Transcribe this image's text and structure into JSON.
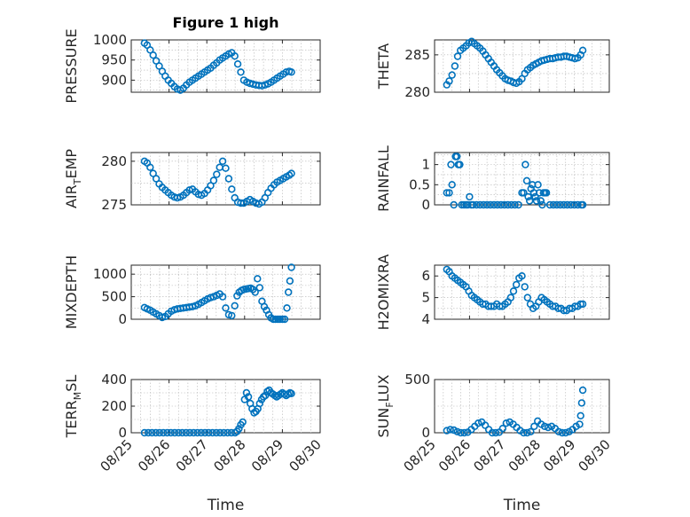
{
  "figure": {
    "title": "Figure 1 high",
    "xlabel": "Time",
    "marker_color": "#0072bd",
    "xticks": [
      "08/25",
      "08/26",
      "08/27",
      "08/28",
      "08/29",
      "08/30"
    ]
  },
  "chart_data": [
    {
      "type": "scatter",
      "title": "Figure 1 high",
      "ylabel": "PRESSURE",
      "xlabel": "",
      "xlim": [
        "08/25",
        "08/30"
      ],
      "ylim": [
        870,
        1000
      ],
      "yticks": [
        "900",
        "950",
        "1000"
      ],
      "grid": true,
      "series": [
        {
          "x": [
            0.35,
            0.42,
            0.5,
            0.58,
            0.66,
            0.74,
            0.82,
            0.9,
            0.98,
            1.06,
            1.14,
            1.22,
            1.3,
            1.38,
            1.46,
            1.54,
            1.62,
            1.7,
            1.78,
            1.86,
            1.94,
            2.02,
            2.1,
            2.18,
            2.26,
            2.34,
            2.42,
            2.5,
            2.58,
            2.66,
            2.74,
            2.82,
            2.9,
            2.98,
            3.06,
            3.14,
            3.22,
            3.3,
            3.38,
            3.46,
            3.54,
            3.62,
            3.7,
            3.78,
            3.86,
            3.94,
            4.02,
            4.1,
            4.18,
            4.24
          ],
          "y": [
            992,
            987,
            975,
            962,
            948,
            935,
            922,
            910,
            900,
            892,
            884,
            878,
            875,
            880,
            888,
            895,
            900,
            905,
            910,
            915,
            920,
            925,
            930,
            937,
            943,
            950,
            955,
            960,
            965,
            968,
            960,
            940,
            920,
            900,
            895,
            892,
            890,
            888,
            887,
            886,
            888,
            891,
            895,
            900,
            905,
            910,
            915,
            920,
            922,
            920
          ]
        }
      ]
    },
    {
      "type": "scatter",
      "title": "",
      "ylabel": "THETA",
      "xlabel": "",
      "xlim": [
        "08/25",
        "08/30"
      ],
      "ylim": [
        280,
        287
      ],
      "yticks": [
        "280",
        "285"
      ],
      "grid": true,
      "series": [
        {
          "x": [
            0.35,
            0.42,
            0.5,
            0.58,
            0.66,
            0.74,
            0.82,
            0.9,
            0.98,
            1.06,
            1.14,
            1.22,
            1.3,
            1.38,
            1.46,
            1.54,
            1.62,
            1.7,
            1.78,
            1.86,
            1.94,
            2.02,
            2.1,
            2.18,
            2.26,
            2.34,
            2.42,
            2.5,
            2.58,
            2.66,
            2.74,
            2.82,
            2.9,
            2.98,
            3.06,
            3.14,
            3.22,
            3.3,
            3.38,
            3.46,
            3.54,
            3.62,
            3.7,
            3.78,
            3.86,
            3.94,
            4.02,
            4.1,
            4.18,
            4.24
          ],
          "y": [
            281,
            281.5,
            282.3,
            283.5,
            284.8,
            285.6,
            285.9,
            286.2,
            286.6,
            286.8,
            286.5,
            286.2,
            285.9,
            285.5,
            285,
            284.5,
            284,
            283.5,
            283,
            282.6,
            282.2,
            281.8,
            281.6,
            281.5,
            281.3,
            281.2,
            281.4,
            281.8,
            282.5,
            283,
            283.3,
            283.6,
            283.8,
            284,
            284.2,
            284.3,
            284.4,
            284.5,
            284.5,
            284.6,
            284.7,
            284.7,
            284.8,
            284.8,
            284.7,
            284.6,
            284.5,
            284.6,
            285,
            285.6
          ]
        }
      ]
    },
    {
      "type": "scatter",
      "title": "",
      "ylabel": "AIR_TEMP",
      "xlabel": "",
      "xlim": [
        "08/25",
        "08/30"
      ],
      "ylim": [
        275,
        281
      ],
      "yticks": [
        "275",
        "280"
      ],
      "grid": true,
      "series": [
        {
          "x": [
            0.35,
            0.42,
            0.5,
            0.58,
            0.66,
            0.74,
            0.82,
            0.9,
            0.98,
            1.06,
            1.14,
            1.22,
            1.3,
            1.38,
            1.46,
            1.54,
            1.62,
            1.7,
            1.78,
            1.86,
            1.94,
            2.02,
            2.1,
            2.18,
            2.26,
            2.34,
            2.42,
            2.5,
            2.58,
            2.66,
            2.74,
            2.82,
            2.9,
            2.98,
            3.06,
            3.14,
            3.22,
            3.3,
            3.38,
            3.46,
            3.54,
            3.62,
            3.7,
            3.78,
            3.86,
            3.94,
            4.02,
            4.1,
            4.18,
            4.24
          ],
          "y": [
            280,
            279.8,
            279.3,
            278.6,
            278,
            277.4,
            277,
            276.7,
            276.4,
            276.1,
            275.9,
            275.8,
            275.9,
            276.1,
            276.4,
            276.7,
            276.8,
            276.5,
            276.2,
            276.1,
            276.3,
            276.7,
            277.2,
            277.8,
            278.5,
            279.3,
            280,
            279.2,
            278,
            276.8,
            275.8,
            275.3,
            275.2,
            275.2,
            275.4,
            275.6,
            275.4,
            275.2,
            275.1,
            275.3,
            275.8,
            276.4,
            276.9,
            277.3,
            277.6,
            277.8,
            278,
            278.2,
            278.4,
            278.6
          ]
        }
      ]
    },
    {
      "type": "scatter",
      "title": "",
      "ylabel": "RAINFALL",
      "xlabel": "",
      "xlim": [
        "08/25",
        "08/30"
      ],
      "ylim": [
        0,
        1.3
      ],
      "yticks": [
        "0",
        "0.5",
        "1"
      ],
      "grid": true,
      "series": [
        {
          "x": [
            0.35,
            0.42,
            0.47,
            0.5,
            0.55,
            0.6,
            0.64,
            0.68,
            0.72,
            0.78,
            0.84,
            0.9,
            0.95,
            1.0,
            1.05,
            1.1,
            1.2,
            1.3,
            1.4,
            1.5,
            1.6,
            1.7,
            1.8,
            1.9,
            2.0,
            2.1,
            2.2,
            2.3,
            2.4,
            2.5,
            2.55,
            2.6,
            2.64,
            2.68,
            2.72,
            2.76,
            2.8,
            2.84,
            2.88,
            2.92,
            2.96,
            3.0,
            3.04,
            3.08,
            3.12,
            3.16,
            3.2,
            3.3,
            3.4,
            3.5,
            3.6,
            3.7,
            3.8,
            3.9,
            4.0,
            4.1,
            4.2,
            4.24
          ],
          "y": [
            0.3,
            0.3,
            1.0,
            0.5,
            0,
            1.2,
            1.2,
            1.0,
            1.0,
            0,
            0,
            0,
            0,
            0.2,
            0,
            0,
            0,
            0,
            0,
            0,
            0,
            0,
            0,
            0,
            0,
            0,
            0,
            0,
            0,
            0.3,
            0.3,
            1.0,
            0.6,
            0.2,
            0.1,
            0.4,
            0.5,
            0.3,
            0.2,
            0.1,
            0.5,
            0.3,
            0.1,
            0,
            0.3,
            0.3,
            0.3,
            0,
            0,
            0,
            0,
            0,
            0,
            0,
            0,
            0,
            0,
            0
          ]
        }
      ]
    },
    {
      "type": "scatter",
      "title": "",
      "ylabel": "MIXDEPTH",
      "xlabel": "",
      "xlim": [
        "08/25",
        "08/30"
      ],
      "ylim": [
        0,
        1200
      ],
      "yticks": [
        "0",
        "500",
        "1000"
      ],
      "grid": true,
      "series": [
        {
          "x": [
            0.35,
            0.42,
            0.5,
            0.58,
            0.66,
            0.74,
            0.82,
            0.9,
            0.98,
            1.06,
            1.14,
            1.22,
            1.3,
            1.38,
            1.46,
            1.54,
            1.62,
            1.7,
            1.78,
            1.86,
            1.94,
            2.02,
            2.1,
            2.18,
            2.26,
            2.34,
            2.42,
            2.5,
            2.58,
            2.66,
            2.74,
            2.8,
            2.86,
            2.92,
            2.98,
            3.04,
            3.1,
            3.16,
            3.22,
            3.28,
            3.34,
            3.4,
            3.46,
            3.52,
            3.58,
            3.64,
            3.7,
            3.76,
            3.82,
            3.88,
            3.94,
            4.0,
            4.06,
            4.12,
            4.16,
            4.2,
            4.24
          ],
          "y": [
            260,
            230,
            200,
            160,
            120,
            80,
            40,
            60,
            120,
            180,
            210,
            230,
            240,
            250,
            260,
            270,
            280,
            300,
            330,
            370,
            410,
            450,
            480,
            500,
            530,
            560,
            500,
            250,
            100,
            80,
            300,
            520,
            600,
            640,
            660,
            670,
            680,
            690,
            660,
            600,
            900,
            700,
            400,
            280,
            200,
            100,
            30,
            0,
            0,
            0,
            0,
            0,
            0,
            250,
            600,
            850,
            1150
          ]
        }
      ]
    },
    {
      "type": "scatter",
      "title": "",
      "ylabel": "H2OMIXRA",
      "xlabel": "",
      "xlim": [
        "08/25",
        "08/30"
      ],
      "ylim": [
        4,
        6.5
      ],
      "yticks": [
        "4",
        "5",
        "6"
      ],
      "grid": true,
      "series": [
        {
          "x": [
            0.35,
            0.42,
            0.5,
            0.58,
            0.66,
            0.74,
            0.82,
            0.9,
            0.98,
            1.06,
            1.14,
            1.22,
            1.3,
            1.38,
            1.46,
            1.54,
            1.62,
            1.7,
            1.78,
            1.86,
            1.94,
            2.02,
            2.1,
            2.18,
            2.26,
            2.34,
            2.42,
            2.5,
            2.58,
            2.66,
            2.74,
            2.82,
            2.9,
            2.98,
            3.06,
            3.14,
            3.22,
            3.3,
            3.38,
            3.46,
            3.54,
            3.62,
            3.7,
            3.78,
            3.86,
            3.94,
            4.02,
            4.1,
            4.18,
            4.24
          ],
          "y": [
            6.3,
            6.2,
            6.0,
            5.9,
            5.8,
            5.7,
            5.6,
            5.5,
            5.3,
            5.1,
            5.0,
            4.9,
            4.8,
            4.7,
            4.7,
            4.6,
            4.6,
            4.6,
            4.7,
            4.6,
            4.6,
            4.7,
            4.8,
            5.0,
            5.3,
            5.6,
            5.9,
            6.0,
            5.5,
            5.0,
            4.7,
            4.5,
            4.6,
            4.8,
            5.0,
            4.9,
            4.8,
            4.7,
            4.6,
            4.6,
            4.5,
            4.5,
            4.4,
            4.4,
            4.5,
            4.5,
            4.6,
            4.6,
            4.7,
            4.7
          ]
        }
      ]
    },
    {
      "type": "scatter",
      "title": "",
      "ylabel": "TERR_MSL",
      "xlabel": "",
      "xlim": [
        "08/25",
        "08/30"
      ],
      "ylim": [
        0,
        400
      ],
      "yticks": [
        "0",
        "200",
        "400"
      ],
      "grid": true,
      "series": [
        {
          "x": [
            0.35,
            0.45,
            0.55,
            0.65,
            0.75,
            0.85,
            0.95,
            1.05,
            1.15,
            1.25,
            1.35,
            1.45,
            1.55,
            1.65,
            1.75,
            1.85,
            1.95,
            2.05,
            2.15,
            2.25,
            2.35,
            2.45,
            2.55,
            2.65,
            2.75,
            2.8,
            2.85,
            2.9,
            2.95,
            3.0,
            3.05,
            3.1,
            3.15,
            3.2,
            3.25,
            3.3,
            3.35,
            3.4,
            3.45,
            3.5,
            3.55,
            3.6,
            3.65,
            3.7,
            3.75,
            3.8,
            3.85,
            3.9,
            3.95,
            4.0,
            4.05,
            4.1,
            4.15,
            4.2,
            4.24
          ],
          "y": [
            0,
            0,
            0,
            0,
            0,
            0,
            0,
            0,
            0,
            0,
            0,
            0,
            0,
            0,
            0,
            0,
            0,
            0,
            0,
            0,
            0,
            0,
            0,
            0,
            0,
            10,
            30,
            60,
            80,
            250,
            300,
            270,
            220,
            180,
            150,
            160,
            180,
            220,
            250,
            270,
            280,
            310,
            320,
            300,
            290,
            280,
            270,
            280,
            290,
            300,
            290,
            280,
            290,
            300,
            295
          ]
        }
      ]
    },
    {
      "type": "scatter",
      "title": "",
      "ylabel": "SUN_FLUX",
      "xlabel": "",
      "xlim": [
        "08/25",
        "08/30"
      ],
      "ylim": [
        0,
        500
      ],
      "yticks": [
        "0",
        "500"
      ],
      "grid": true,
      "series": [
        {
          "x": [
            0.35,
            0.45,
            0.55,
            0.65,
            0.75,
            0.85,
            0.95,
            1.05,
            1.15,
            1.25,
            1.35,
            1.45,
            1.55,
            1.65,
            1.75,
            1.85,
            1.95,
            2.05,
            2.15,
            2.25,
            2.35,
            2.45,
            2.55,
            2.65,
            2.75,
            2.85,
            2.95,
            3.05,
            3.15,
            3.25,
            3.35,
            3.45,
            3.55,
            3.65,
            3.75,
            3.85,
            3.95,
            4.05,
            4.15,
            4.18,
            4.21,
            4.24
          ],
          "y": [
            20,
            30,
            25,
            10,
            0,
            0,
            5,
            30,
            60,
            90,
            100,
            70,
            30,
            0,
            0,
            5,
            40,
            90,
            100,
            80,
            50,
            20,
            0,
            0,
            10,
            60,
            110,
            80,
            60,
            50,
            60,
            40,
            10,
            0,
            0,
            10,
            30,
            60,
            80,
            160,
            280,
            400
          ]
        }
      ]
    }
  ]
}
